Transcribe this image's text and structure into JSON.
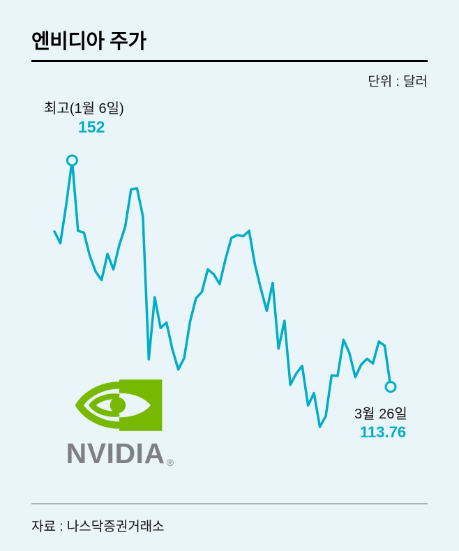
{
  "header": {
    "title": "엔비디아 주가",
    "unit": "단위 : 달러"
  },
  "annotations": {
    "peak_label": "최고(1월 6일)",
    "peak_value": "152",
    "end_label": "3월 26일",
    "end_value": "113.76"
  },
  "logo": {
    "wordmark": "NVIDIA",
    "registered": "®"
  },
  "footer": {
    "source": "자료 : 나스닥증권거래소"
  },
  "colors": {
    "accent": "#00ADC6",
    "background": "#EAF5F9",
    "nvidia_green": "#76B900",
    "logo_gray": "#7E8184",
    "rule": "#000000"
  },
  "chart_data": {
    "type": "line",
    "title": "엔비디아 주가",
    "unit": "달러",
    "line_color": "#00ADC6",
    "axes_visible": false,
    "grid": false,
    "legend": "none",
    "ylim": [
      105,
      155
    ],
    "values": [
      140.0,
      138.0,
      144.5,
      152.0,
      140.1,
      139.8,
      135.9,
      133.2,
      131.8,
      136.2,
      133.6,
      137.7,
      140.8,
      147.1,
      147.3,
      142.6,
      118.4,
      128.9,
      123.7,
      124.6,
      120.1,
      116.7,
      118.6,
      124.8,
      128.7,
      129.8,
      133.6,
      132.8,
      131.1,
      135.3,
      138.9,
      139.4,
      139.2,
      140.1,
      134.4,
      130.3,
      126.6,
      131.3,
      120.2,
      124.9,
      114.1,
      116.0,
      117.3,
      110.6,
      112.7,
      107.0,
      108.8,
      115.7,
      115.6,
      121.7,
      119.5,
      115.4,
      117.5,
      118.5,
      117.7,
      121.4,
      120.7,
      113.76
    ],
    "annotations": [
      {
        "label": "최고(1월 6일)",
        "value": 152,
        "marker": "open-circle"
      },
      {
        "label": "3월 26일",
        "value": 113.76,
        "marker": "open-circle"
      }
    ]
  }
}
